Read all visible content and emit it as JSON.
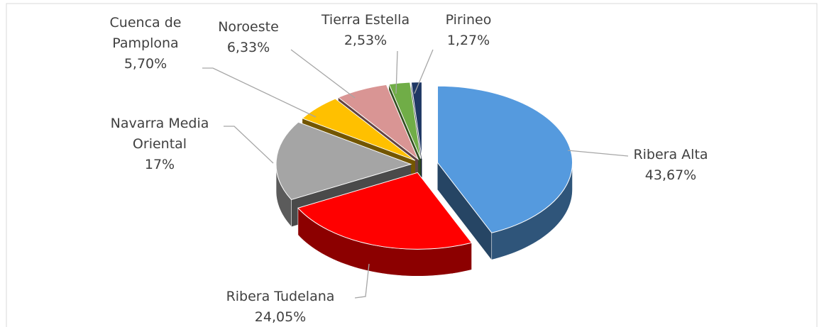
{
  "chart_data": {
    "type": "pie",
    "categories": [
      "Ribera Alta",
      "Ribera Tudelana",
      "Navarra Media Oriental",
      "Cuenca de Pamplona",
      "Noroeste",
      "Tierra Estella",
      "Pirineo"
    ],
    "values": [
      43.67,
      24.05,
      17,
      5.7,
      6.33,
      2.53,
      1.27
    ],
    "value_labels": [
      "43,67%",
      "24,05%",
      "17%",
      "5,70%",
      "6,33%",
      "2,53%",
      "1,27%"
    ],
    "colors": [
      "#559ade",
      "#ff0000",
      "#a5a5a5",
      "#ffc000",
      "#d99594",
      "#70ad47",
      "#1f3864"
    ]
  }
}
